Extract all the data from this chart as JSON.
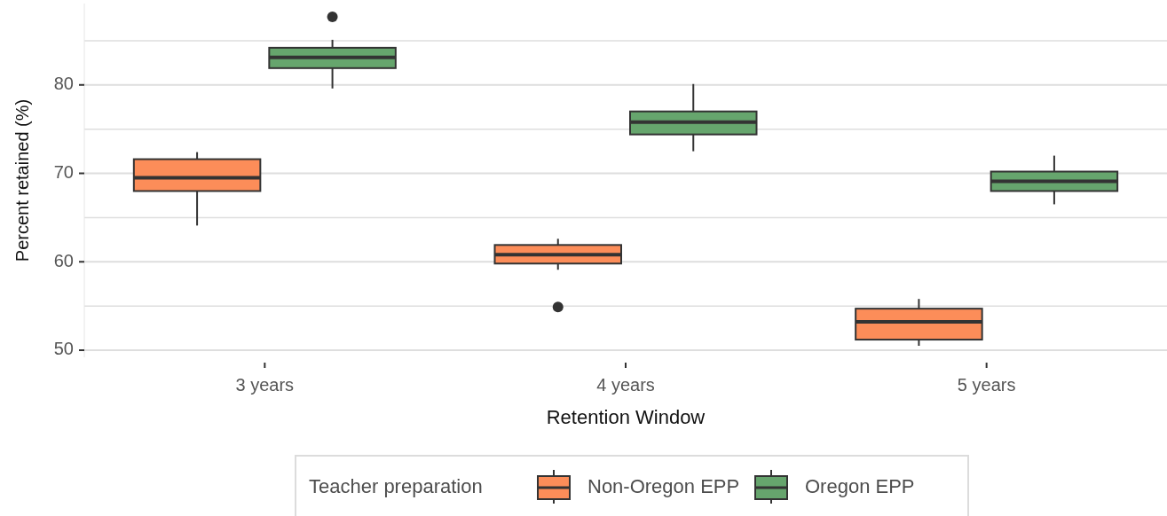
{
  "chart_data": {
    "type": "box",
    "xlabel": "Retention Window",
    "ylabel": "Percent retained (%)",
    "legend_title": "Teacher preparation",
    "categories": [
      "3 years",
      "4 years",
      "5 years"
    ],
    "series": [
      {
        "name": "Non-Oregon EPP",
        "color": "#fc8d59",
        "boxes": [
          {
            "low": 64.1,
            "q1": 68,
            "median": 69.5,
            "q3": 71.6,
            "high": 72.4
          },
          {
            "low": 59.1,
            "q1": 59.8,
            "median": 60.8,
            "q3": 61.9,
            "high": 62.6,
            "outliers": [
              54.9
            ]
          },
          {
            "low": 50.5,
            "q1": 51.2,
            "median": 53.2,
            "q3": 54.7,
            "high": 55.8
          }
        ]
      },
      {
        "name": "Oregon EPP",
        "color": "#66a56d",
        "boxes": [
          {
            "low": 79.6,
            "q1": 81.9,
            "median": 83.1,
            "q3": 84.2,
            "high": 85.1,
            "outliers": [
              87.7
            ]
          },
          {
            "low": 72.5,
            "q1": 74.4,
            "median": 75.8,
            "q3": 77,
            "high": 80.1
          },
          {
            "low": 66.5,
            "q1": 68,
            "median": 69.1,
            "q3": 70.2,
            "high": 72
          }
        ]
      }
    ],
    "ylim": [
      49.2,
      89.2
    ],
    "yticks": [
      50,
      {
        "value": 55,
        "label": null
      },
      60,
      {
        "value": 65,
        "label": null
      },
      70,
      {
        "value": 75,
        "label": null
      },
      80,
      {
        "value": 85,
        "label": null
      }
    ],
    "grid": "y",
    "legend": "bottom"
  }
}
